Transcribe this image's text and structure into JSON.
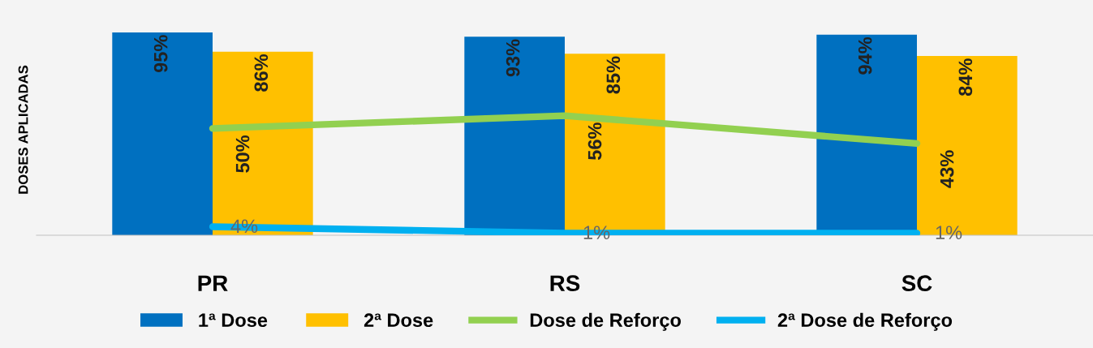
{
  "chart_data": {
    "type": "bar",
    "ylabel": "DOSES APLICADAS",
    "categories": [
      "PR",
      "RS",
      "SC"
    ],
    "series": [
      {
        "name": "1ª Dose",
        "color": "#0070c0",
        "values": [
          95,
          93,
          94
        ],
        "value_labels": [
          "95%",
          "93%",
          "94%"
        ]
      },
      {
        "name": "2ª Dose",
        "color": "#ffc000",
        "values": [
          86,
          85,
          84
        ],
        "value_labels": [
          "86%",
          "85%",
          "84%"
        ]
      },
      {
        "name": "Dose de Reforço",
        "type": "line",
        "color": "#92d050",
        "values": [
          50,
          56,
          43
        ],
        "value_labels": [
          "50%",
          "56%",
          "43%"
        ]
      },
      {
        "name": "2ª Dose de Reforço",
        "type": "line",
        "color": "#00b0f0",
        "values": [
          4,
          1,
          1
        ],
        "value_labels": [
          "4%",
          "1%",
          "1%"
        ]
      }
    ],
    "legend": "bottom",
    "grid": false,
    "marker": "none",
    "line_style": "solid"
  }
}
